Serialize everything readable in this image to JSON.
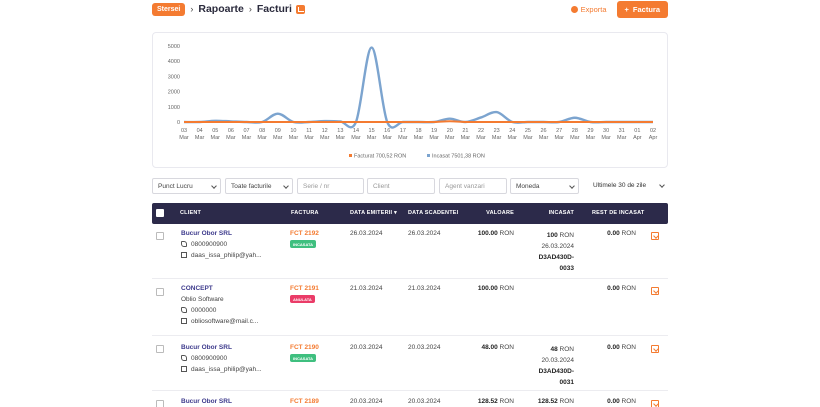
{
  "header": {
    "badge": "Stersei",
    "breadcrumb": [
      "Rapoarte",
      "Facturi"
    ],
    "export_label": "Exporta",
    "new_invoice_label": "Factura"
  },
  "chart_data": {
    "type": "line",
    "title": "",
    "xlabel": "",
    "ylabel": "",
    "ylim": [
      0,
      5000
    ],
    "yticks": [
      0,
      1000,
      2000,
      3000,
      4000,
      5000
    ],
    "x": [
      {
        "d": "03",
        "m": "Mar"
      },
      {
        "d": "04",
        "m": "Mar"
      },
      {
        "d": "05",
        "m": "Mar"
      },
      {
        "d": "06",
        "m": "Mar"
      },
      {
        "d": "07",
        "m": "Mar"
      },
      {
        "d": "08",
        "m": "Mar"
      },
      {
        "d": "09",
        "m": "Mar"
      },
      {
        "d": "10",
        "m": "Mar"
      },
      {
        "d": "11",
        "m": "Mar"
      },
      {
        "d": "12",
        "m": "Mar"
      },
      {
        "d": "13",
        "m": "Mar"
      },
      {
        "d": "14",
        "m": "Mar"
      },
      {
        "d": "15",
        "m": "Mar"
      },
      {
        "d": "16",
        "m": "Mar"
      },
      {
        "d": "17",
        "m": "Mar"
      },
      {
        "d": "18",
        "m": "Mar"
      },
      {
        "d": "19",
        "m": "Mar"
      },
      {
        "d": "20",
        "m": "Mar"
      },
      {
        "d": "21",
        "m": "Mar"
      },
      {
        "d": "22",
        "m": "Mar"
      },
      {
        "d": "23",
        "m": "Mar"
      },
      {
        "d": "24",
        "m": "Mar"
      },
      {
        "d": "25",
        "m": "Mar"
      },
      {
        "d": "26",
        "m": "Mar"
      },
      {
        "d": "27",
        "m": "Mar"
      },
      {
        "d": "28",
        "m": "Mar"
      },
      {
        "d": "29",
        "m": "Mar"
      },
      {
        "d": "30",
        "m": "Mar"
      },
      {
        "d": "31",
        "m": "Mar"
      },
      {
        "d": "01",
        "m": "Apr"
      },
      {
        "d": "02",
        "m": "Apr"
      }
    ],
    "series": [
      {
        "name": "Facturat",
        "label": "Facturat 700,52 RON",
        "color": "#f47b31",
        "values": [
          0,
          0,
          0,
          0,
          0,
          0,
          0,
          0,
          0,
          0,
          0,
          0,
          0,
          0,
          0,
          0,
          0,
          48,
          0,
          0,
          0,
          0,
          0,
          0,
          0,
          0,
          0,
          0,
          0,
          0,
          0
        ]
      },
      {
        "name": "Incasat",
        "label": "Incasat 7501,38 RON",
        "color": "#7ca4cf",
        "values": [
          0,
          0,
          80,
          40,
          0,
          0,
          550,
          0,
          0,
          60,
          40,
          0,
          4900,
          0,
          0,
          0,
          0,
          220,
          0,
          300,
          650,
          0,
          0,
          0,
          0,
          280,
          0,
          0,
          0,
          0,
          0
        ]
      }
    ],
    "legend_position": "bottom-center",
    "grid": false
  },
  "filters": {
    "punct_lucru": "Punct Lucru",
    "toate_facturile": "Toate facturile",
    "serie_placeholder": "Serie / nr",
    "client_placeholder": "Client",
    "agent_placeholder": "Agent vanzari",
    "moneda": "Moneda",
    "period": "Ultimele 30 de zile"
  },
  "table": {
    "headers": {
      "client": "CLIENT",
      "factura": "FACTURA",
      "data_emiterii": "DATA EMITERII",
      "data_scadentei": "DATA SCADENTEI",
      "valoare": "VALOARE",
      "incasat": "INCASAT",
      "rest": "REST DE INCASAT"
    },
    "rows": [
      {
        "client": "Bucur Obor SRL",
        "phone": "0800900900",
        "email": "daas_issa_philip@yah...",
        "invoice": "FCT 2192",
        "status": "INCASATA",
        "status_color": "green",
        "issued": "26.03.2024",
        "due": "26.03.2024",
        "value": "100.00",
        "currency": "RON",
        "paid": "100",
        "paid_currency": "RON",
        "paid_date": "26.03.2024",
        "paid_ref1": "D3AD430D-",
        "paid_ref2": "0033",
        "rest": "0.00",
        "rest_currency": "RON"
      },
      {
        "client": "CONCEPT",
        "company": "Oblio Software",
        "phone": "0000000",
        "email": "obliosoftware@mail.c...",
        "invoice": "FCT 2191",
        "status": "ANULATA",
        "status_color": "red",
        "issued": "21.03.2024",
        "due": "21.03.2024",
        "value": "100.00",
        "currency": "RON",
        "rest": "0.00",
        "rest_currency": "RON"
      },
      {
        "client": "Bucur Obor SRL",
        "phone": "0800900900",
        "email": "daas_issa_philip@yah...",
        "invoice": "FCT 2190",
        "status": "INCASATA",
        "status_color": "green",
        "issued": "20.03.2024",
        "due": "20.03.2024",
        "value": "48.00",
        "currency": "RON",
        "paid": "48",
        "paid_currency": "RON",
        "paid_date": "20.03.2024",
        "paid_ref1": "D3AD430D-",
        "paid_ref2": "0031",
        "rest": "0.00",
        "rest_currency": "RON"
      },
      {
        "client": "Bucur Obor SRL",
        "invoice": "FCT 2189",
        "issued": "20.03.2024",
        "due": "20.03.2024",
        "value": "128.52",
        "currency": "RON",
        "paid": "128.52",
        "paid_currency": "RON",
        "rest": "0.00",
        "rest_currency": "RON"
      }
    ]
  }
}
